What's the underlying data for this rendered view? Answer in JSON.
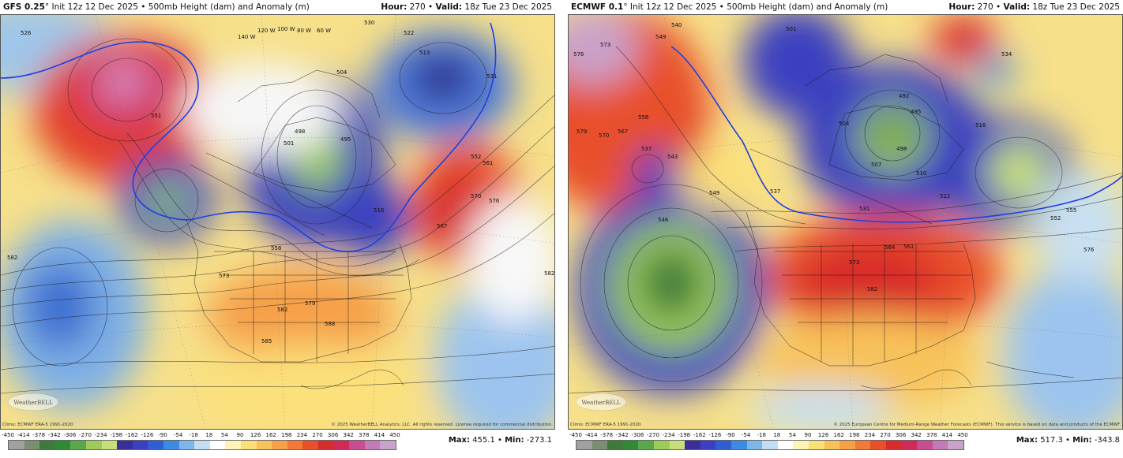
{
  "colorbar": {
    "ticks": [
      "-450",
      "-414",
      "-378",
      "-342",
      "-306",
      "-270",
      "-234",
      "-198",
      "-162",
      "-126",
      "-90",
      "-54",
      "-18",
      "18",
      "54",
      "90",
      "126",
      "162",
      "198",
      "234",
      "270",
      "306",
      "342",
      "378",
      "414",
      "450"
    ],
    "colors": [
      "#a0a0a0",
      "#7a8f70",
      "#3e7a3a",
      "#2f8a36",
      "#5aa84a",
      "#9ccc5a",
      "#c6df7a",
      "#3a2f9a",
      "#3b3fc0",
      "#2f5fd0",
      "#3d8ae0",
      "#7fb6ea",
      "#c3ddf3",
      "#ffffff",
      "#fff4b8",
      "#fbe07a",
      "#f8c25a",
      "#f6a04a",
      "#f27a38",
      "#e8502c",
      "#d82c2c",
      "#d02a5a",
      "#c84e90",
      "#c47ab6",
      "#c9a2c9"
    ]
  },
  "left": {
    "model": "GFS 0.25",
    "title_rest": "° Init 12z 12 Dec 2025 • 500mb Height (dam) and Anomaly (m)",
    "hour_label": "Hour:",
    "hour_value": " 270 • ",
    "valid_label": "Valid:",
    "valid_value": " 18z Tue 23 Dec 2025",
    "climo": "Climo: ECMWF ERA-5 1991-2020",
    "copyright": "© 2025 WeatherBELL Analytics, LLC. All rights reserved. License required for commercial distribution.",
    "max_label": "Max:",
    "max_value": " 455.1 • ",
    "min_label": "Min:",
    "min_value": " -273.1",
    "contour_labels": [
      "526",
      "530",
      "522",
      "513",
      "531",
      "551",
      "504",
      "501",
      "498",
      "495",
      "516",
      "552",
      "561",
      "570",
      "576",
      "558",
      "567",
      "582",
      "573",
      "579",
      "582",
      "588",
      "585",
      "582",
      "140 W",
      "120 W",
      "100 W",
      "80 W",
      "60 W"
    ]
  },
  "right": {
    "model": "ECMWF 0.1",
    "title_rest": "° Init 12z 12 Dec 2025 • 500mb Height (dam) and Anomaly (m)",
    "hour_label": "Hour:",
    "hour_value": " 270 • ",
    "valid_label": "Valid:",
    "valid_value": " 18z Tue 23 Dec 2025",
    "climo": "Climo: ECMWF ERA-5 1991-2020",
    "copyright": "© 2025 European Centre for Medium-Range Weather Forecasts (ECMWF). This service is based on data and products of the ECMWF.",
    "max_label": "Max:",
    "max_value": " 517.3 • ",
    "min_label": "Min:",
    "min_value": " -343.8",
    "contour_labels": [
      "576",
      "573",
      "579",
      "570",
      "567",
      "558",
      "549",
      "540",
      "537",
      "543",
      "546",
      "549",
      "537",
      "531",
      "507",
      "510",
      "522",
      "516",
      "501",
      "504",
      "492",
      "495",
      "498",
      "564",
      "561",
      "573",
      "582",
      "576",
      "534",
      "552",
      "555"
    ]
  },
  "logo_text": "WeatherBELL"
}
